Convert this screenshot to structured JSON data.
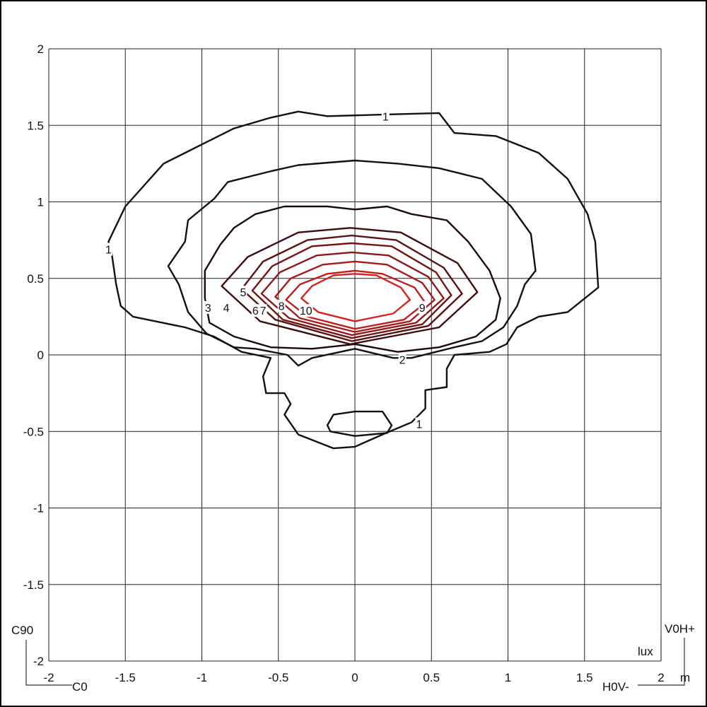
{
  "chart_data": {
    "type": "contour",
    "title": "",
    "unit_label": "lux",
    "axis_unit": "m",
    "xlim": [
      -2,
      2
    ],
    "ylim": [
      -2,
      2
    ],
    "grid": true,
    "x_ticks": [
      "-2",
      "-1.5",
      "-1",
      "-0.5",
      "0",
      "0.5",
      "1",
      "1.5",
      "2"
    ],
    "y_ticks": [
      "2",
      "1.5",
      "1",
      "0.5",
      "0",
      "-0.5",
      "-1",
      "-1.5",
      "-2"
    ],
    "corner_labels": {
      "c90": "C90",
      "c0": "C0",
      "v0h_plus": "V0H+",
      "h0v_minus": "H0V-"
    },
    "contours": [
      {
        "level": 1,
        "color": "#111111",
        "labels": [
          [
            -1.61,
            0.69
          ],
          [
            0.2,
            1.56
          ],
          [
            0.42,
            -0.45
          ]
        ],
        "points": [
          [
            -1.61,
            0.74
          ],
          [
            -1.5,
            0.97
          ],
          [
            -1.25,
            1.25
          ],
          [
            -0.97,
            1.39
          ],
          [
            -0.79,
            1.48
          ],
          [
            -0.55,
            1.55
          ],
          [
            -0.37,
            1.59
          ],
          [
            -0.18,
            1.56
          ],
          [
            0.18,
            1.57
          ],
          [
            0.55,
            1.58
          ],
          [
            0.65,
            1.45
          ],
          [
            0.92,
            1.43
          ],
          [
            1.2,
            1.32
          ],
          [
            1.39,
            1.15
          ],
          [
            1.52,
            0.92
          ],
          [
            1.57,
            0.74
          ],
          [
            1.59,
            0.44
          ],
          [
            1.39,
            0.28
          ],
          [
            1.2,
            0.25
          ],
          [
            1.06,
            0.18
          ],
          [
            0.99,
            0.07
          ],
          [
            0.88,
            0.02
          ],
          [
            0.65,
            0.0
          ],
          [
            0.6,
            -0.09
          ],
          [
            0.6,
            -0.21
          ],
          [
            0.46,
            -0.23
          ],
          [
            0.46,
            -0.35
          ],
          [
            0.37,
            -0.44
          ],
          [
            0.18,
            -0.52
          ],
          [
            0.0,
            -0.6
          ],
          [
            -0.14,
            -0.61
          ],
          [
            -0.37,
            -0.52
          ],
          [
            -0.46,
            -0.39
          ],
          [
            -0.42,
            -0.32
          ],
          [
            -0.46,
            -0.25
          ],
          [
            -0.58,
            -0.25
          ],
          [
            -0.6,
            -0.14
          ],
          [
            -0.55,
            -0.02
          ],
          [
            -0.74,
            0.02
          ],
          [
            -0.92,
            0.12
          ],
          [
            -1.11,
            0.18
          ],
          [
            -1.45,
            0.25
          ],
          [
            -1.53,
            0.32
          ],
          [
            -1.56,
            0.46
          ],
          [
            -1.59,
            0.67
          ]
        ],
        "hole": [
          [
            -0.18,
            -0.46
          ],
          [
            -0.14,
            -0.39
          ],
          [
            0.0,
            -0.37
          ],
          [
            0.18,
            -0.37
          ],
          [
            0.24,
            -0.46
          ],
          [
            0.21,
            -0.51
          ],
          [
            0.0,
            -0.53
          ],
          [
            -0.16,
            -0.5
          ]
        ]
      },
      {
        "level": 2,
        "color": "#111111",
        "labels": [
          [
            0.31,
            -0.03
          ]
        ],
        "points": [
          [
            -1.22,
            0.58
          ],
          [
            -1.11,
            0.74
          ],
          [
            -1.09,
            0.88
          ],
          [
            -0.92,
            1.02
          ],
          [
            -0.83,
            1.13
          ],
          [
            -0.55,
            1.2
          ],
          [
            -0.37,
            1.24
          ],
          [
            0.0,
            1.27
          ],
          [
            0.28,
            1.25
          ],
          [
            0.55,
            1.22
          ],
          [
            0.83,
            1.15
          ],
          [
            1.02,
            0.97
          ],
          [
            1.15,
            0.79
          ],
          [
            1.18,
            0.55
          ],
          [
            1.11,
            0.46
          ],
          [
            1.06,
            0.32
          ],
          [
            0.97,
            0.18
          ],
          [
            0.83,
            0.09
          ],
          [
            0.65,
            0.05
          ],
          [
            0.37,
            -0.02
          ],
          [
            0.25,
            -0.02
          ],
          [
            0.0,
            0.04
          ],
          [
            -0.28,
            -0.02
          ],
          [
            -0.37,
            -0.07
          ],
          [
            -0.44,
            0.0
          ],
          [
            -0.65,
            0.04
          ],
          [
            -0.79,
            0.05
          ],
          [
            -0.97,
            0.14
          ],
          [
            -1.09,
            0.28
          ],
          [
            -1.15,
            0.46
          ]
        ]
      },
      {
        "level": 3,
        "color": "#1a0a0a",
        "labels": [
          [
            -0.96,
            0.31
          ]
        ],
        "points": [
          [
            -0.98,
            0.37
          ],
          [
            -0.98,
            0.55
          ],
          [
            -0.88,
            0.72
          ],
          [
            -0.79,
            0.83
          ],
          [
            -0.65,
            0.92
          ],
          [
            -0.46,
            0.97
          ],
          [
            -0.18,
            0.97
          ],
          [
            0.0,
            0.95
          ],
          [
            0.21,
            0.97
          ],
          [
            0.37,
            0.92
          ],
          [
            0.6,
            0.88
          ],
          [
            0.74,
            0.74
          ],
          [
            0.88,
            0.55
          ],
          [
            0.95,
            0.37
          ],
          [
            0.92,
            0.23
          ],
          [
            0.79,
            0.12
          ],
          [
            0.55,
            0.05
          ],
          [
            0.28,
            0.02
          ],
          [
            0.0,
            0.07
          ],
          [
            -0.28,
            0.04
          ],
          [
            -0.55,
            0.05
          ],
          [
            -0.79,
            0.12
          ],
          [
            -0.95,
            0.21
          ]
        ]
      },
      {
        "level": 4,
        "color": "#3a0e0e",
        "labels": [
          [
            -0.84,
            0.31
          ]
        ],
        "points": [
          [
            -0.87,
            0.45
          ],
          [
            -0.7,
            0.64
          ],
          [
            -0.37,
            0.8
          ],
          [
            -0.03,
            0.83
          ],
          [
            0.3,
            0.8
          ],
          [
            0.67,
            0.6
          ],
          [
            0.8,
            0.41
          ],
          [
            0.55,
            0.18
          ],
          [
            -0.03,
            0.07
          ],
          [
            -0.62,
            0.22
          ]
        ]
      },
      {
        "level": 5,
        "color": "#561212",
        "labels": [
          [
            -0.73,
            0.41
          ]
        ],
        "points": [
          [
            -0.74,
            0.43
          ],
          [
            -0.6,
            0.61
          ],
          [
            -0.31,
            0.75
          ],
          [
            -0.02,
            0.78
          ],
          [
            0.27,
            0.75
          ],
          [
            0.58,
            0.57
          ],
          [
            0.7,
            0.4
          ],
          [
            0.48,
            0.19
          ],
          [
            -0.02,
            0.09
          ],
          [
            -0.52,
            0.23
          ]
        ]
      },
      {
        "level": 6,
        "color": "#701515",
        "labels": [
          [
            -0.65,
            0.29
          ]
        ],
        "points": [
          [
            -0.67,
            0.42
          ],
          [
            -0.54,
            0.58
          ],
          [
            -0.28,
            0.71
          ],
          [
            -0.02,
            0.73
          ],
          [
            0.24,
            0.71
          ],
          [
            0.53,
            0.54
          ],
          [
            0.63,
            0.39
          ],
          [
            0.44,
            0.2
          ],
          [
            -0.02,
            0.11
          ],
          [
            -0.47,
            0.23
          ]
        ]
      },
      {
        "level": 7,
        "color": "#8a1818",
        "labels": [
          [
            -0.6,
            0.29
          ]
        ],
        "points": [
          [
            -0.61,
            0.4
          ],
          [
            -0.49,
            0.54
          ],
          [
            -0.25,
            0.65
          ],
          [
            -0.02,
            0.67
          ],
          [
            0.22,
            0.65
          ],
          [
            0.48,
            0.51
          ],
          [
            0.58,
            0.37
          ],
          [
            0.4,
            0.21
          ],
          [
            -0.02,
            0.13
          ],
          [
            -0.43,
            0.24
          ]
        ]
      },
      {
        "level": 8,
        "color": "#a41b1b",
        "labels": [
          [
            -0.48,
            0.32
          ]
        ],
        "points": [
          [
            -0.52,
            0.38
          ],
          [
            -0.42,
            0.5
          ],
          [
            -0.21,
            0.59
          ],
          [
            0.0,
            0.61
          ],
          [
            0.21,
            0.59
          ],
          [
            0.44,
            0.47
          ],
          [
            0.52,
            0.36
          ],
          [
            0.36,
            0.22
          ],
          [
            0.0,
            0.15
          ],
          [
            -0.36,
            0.24
          ]
        ]
      },
      {
        "level": 9,
        "color": "#bc1e1e",
        "labels": [
          [
            0.44,
            0.31
          ]
        ],
        "points": [
          [
            -0.45,
            0.36
          ],
          [
            -0.36,
            0.46
          ],
          [
            -0.18,
            0.53
          ],
          [
            0.0,
            0.55
          ],
          [
            0.18,
            0.53
          ],
          [
            0.39,
            0.44
          ],
          [
            0.46,
            0.34
          ],
          [
            0.32,
            0.23
          ],
          [
            0.0,
            0.17
          ],
          [
            -0.31,
            0.25
          ]
        ]
      },
      {
        "level": 10,
        "color": "#d42222",
        "labels": [
          [
            -0.32,
            0.29
          ]
        ],
        "points": [
          [
            -0.35,
            0.37
          ],
          [
            -0.28,
            0.45
          ],
          [
            -0.14,
            0.52
          ],
          [
            0.0,
            0.53
          ],
          [
            0.14,
            0.52
          ],
          [
            0.3,
            0.44
          ],
          [
            0.36,
            0.36
          ],
          [
            0.25,
            0.27
          ],
          [
            0.0,
            0.22
          ],
          [
            -0.24,
            0.28
          ]
        ]
      }
    ]
  }
}
